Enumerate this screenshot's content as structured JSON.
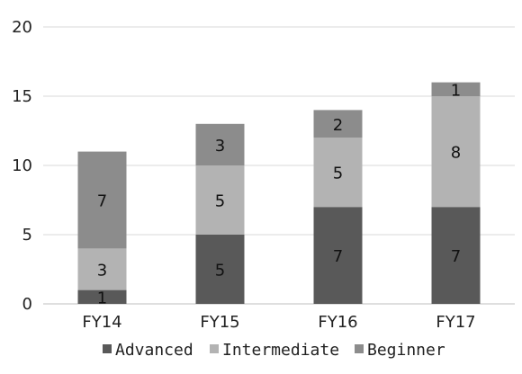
{
  "chart_data": {
    "type": "bar",
    "stacked": true,
    "title": "",
    "xlabel": "",
    "ylabel": "",
    "categories": [
      "FY14",
      "FY15",
      "FY16",
      "FY17"
    ],
    "ylim": [
      0,
      20
    ],
    "yticks": [
      0,
      5,
      10,
      15,
      20
    ],
    "grid": true,
    "legend_position": "bottom",
    "series": [
      {
        "name": "Advanced",
        "values": [
          1,
          5,
          7,
          7
        ],
        "color": "#595959"
      },
      {
        "name": "Intermediate",
        "values": [
          3,
          5,
          5,
          8
        ],
        "color": "#b3b3b3"
      },
      {
        "name": "Beginner",
        "values": [
          7,
          3,
          2,
          1
        ],
        "color": "#8c8c8c"
      }
    ]
  }
}
